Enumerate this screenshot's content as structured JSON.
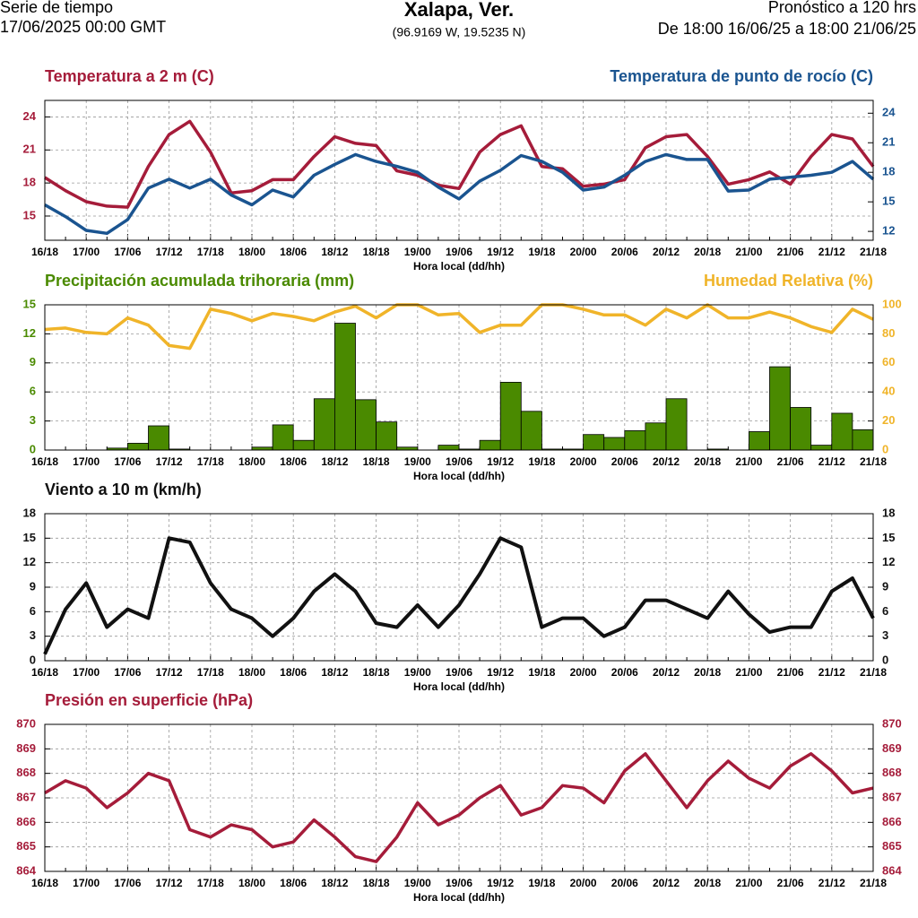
{
  "header": {
    "left1": "Serie de tiempo",
    "left2": "17/06/2025 00:00 GMT",
    "title": "Xalapa, Ver.",
    "subtitle": "(96.9169 W, 19.5235 N)",
    "right1": "Pronóstico a 120 hrs",
    "right2": "De 18:00 16/06/25 a 18:00 21/06/25"
  },
  "chart_data": [
    {
      "type": "line",
      "xlabel": "Hora local (dd/hh)",
      "grid": true,
      "categories": [
        "16/18",
        null,
        "17/00",
        null,
        "17/06",
        null,
        "17/12",
        null,
        "17/18",
        null,
        "18/00",
        null,
        "18/06",
        null,
        "18/12",
        null,
        "18/18",
        null,
        "19/00",
        null,
        "19/06",
        null,
        "19/12",
        null,
        "19/18",
        null,
        "20/00",
        null,
        "20/06",
        null,
        "20/12",
        null,
        "20/18",
        null,
        "21/00",
        null,
        "21/06",
        null,
        "21/12",
        null,
        "21/18"
      ],
      "ylim": [
        12.8,
        25.5
      ],
      "yticks": [
        15,
        18,
        21,
        24
      ],
      "y2lim": [
        11.1,
        25.3
      ],
      "y2ticks": [
        12,
        15,
        18,
        21,
        24
      ],
      "series": [
        {
          "name": "Temperatura a 2 m (C)",
          "color": "#a51c3a",
          "values": [
            18.5,
            17.3,
            16.3,
            15.9,
            15.8,
            19.5,
            22.4,
            23.6,
            20.8,
            17.1,
            17.3,
            18.3,
            18.3,
            20.4,
            22.2,
            21.6,
            21.4,
            19.1,
            18.7,
            17.8,
            17.5,
            20.8,
            22.4,
            23.2,
            19.5,
            19.3,
            17.7,
            17.9,
            18.3,
            21.2,
            22.2,
            22.4,
            20.4,
            17.9,
            18.3,
            19.0,
            17.9,
            20.4,
            22.4,
            22.0,
            19.5
          ]
        },
        {
          "name": "Temperatura de punto de rocío (C)",
          "color": "#1a5490",
          "axis": "y2",
          "values": [
            14.7,
            13.5,
            12.1,
            11.8,
            13.2,
            16.4,
            17.3,
            16.4,
            17.3,
            15.7,
            14.7,
            16.2,
            15.5,
            17.7,
            18.8,
            19.8,
            19.1,
            18.6,
            18.0,
            16.5,
            15.3,
            17.1,
            18.2,
            19.7,
            19.1,
            18.0,
            16.2,
            16.5,
            17.7,
            19.1,
            19.8,
            19.3,
            19.3,
            16.1,
            16.2,
            17.3,
            17.5,
            17.7,
            18.0,
            19.1,
            17.3
          ]
        }
      ]
    },
    {
      "type": "combo",
      "xlabel": "Hora local (dd/hh)",
      "grid": true,
      "categories": [
        "16/18",
        null,
        "17/00",
        null,
        "17/06",
        null,
        "17/12",
        null,
        "17/18",
        null,
        "18/00",
        null,
        "18/06",
        null,
        "18/12",
        null,
        "18/18",
        null,
        "19/00",
        null,
        "19/06",
        null,
        "19/12",
        null,
        "19/18",
        null,
        "20/00",
        null,
        "20/06",
        null,
        "20/12",
        null,
        "20/18",
        null,
        "21/00",
        null,
        "21/06",
        null,
        "21/12",
        null,
        "21/18"
      ],
      "ylim": [
        0,
        15
      ],
      "yticks": [
        0,
        3,
        6,
        9,
        12,
        15
      ],
      "y2lim": [
        0,
        100
      ],
      "y2ticks": [
        0,
        20,
        40,
        60,
        80,
        100
      ],
      "series": [
        {
          "name": "Precipitación acumulada trihoraria (mm)",
          "type": "bar",
          "color": "#4a8a00",
          "values": [
            null,
            0,
            0,
            0,
            0.2,
            0.7,
            2.5,
            0.1,
            0,
            0,
            0,
            0.3,
            2.6,
            1.0,
            5.3,
            13.1,
            5.2,
            2.9,
            0.3,
            0,
            0.5,
            0.1,
            1.0,
            7.0,
            4.0,
            0.1,
            0.1,
            1.6,
            1.3,
            2.0,
            2.8,
            5.3,
            0,
            0.1,
            0,
            1.9,
            8.6,
            4.4,
            0.5,
            3.8,
            2.1
          ]
        },
        {
          "name": "Humedad Relativa (%)",
          "type": "line",
          "color": "#f0b429",
          "axis": "y2",
          "values": [
            83,
            84,
            81,
            80,
            91,
            86,
            72,
            70,
            97,
            94,
            89,
            94,
            92,
            89,
            95,
            99,
            91,
            100,
            100,
            93,
            94,
            81,
            86,
            86,
            100,
            100,
            97,
            93,
            93,
            86,
            97,
            91,
            100,
            91,
            91,
            95,
            91,
            85,
            81,
            97,
            90
          ]
        }
      ]
    },
    {
      "type": "line",
      "xlabel": "Hora local (dd/hh)",
      "grid": true,
      "categories": [
        "16/18",
        null,
        "17/00",
        null,
        "17/06",
        null,
        "17/12",
        null,
        "17/18",
        null,
        "18/00",
        null,
        "18/06",
        null,
        "18/12",
        null,
        "18/18",
        null,
        "19/00",
        null,
        "19/06",
        null,
        "19/12",
        null,
        "19/18",
        null,
        "20/00",
        null,
        "20/06",
        null,
        "20/12",
        null,
        "20/18",
        null,
        "21/00",
        null,
        "21/06",
        null,
        "21/12",
        null,
        "21/18"
      ],
      "ylim": [
        0,
        18
      ],
      "yticks": [
        0,
        3,
        6,
        9,
        12,
        15,
        18
      ],
      "series": [
        {
          "name": "Viento a 10 m (km/h)",
          "color": "#111111",
          "values": [
            0.8,
            6.3,
            9.5,
            4.1,
            6.3,
            5.2,
            15.0,
            14.5,
            9.5,
            6.3,
            5.2,
            3.0,
            5.2,
            8.5,
            10.6,
            8.5,
            4.6,
            4.1,
            6.8,
            4.1,
            6.8,
            10.6,
            15.0,
            13.9,
            4.1,
            5.2,
            5.2,
            3.0,
            4.1,
            7.4,
            7.4,
            6.3,
            5.2,
            8.5,
            5.7,
            3.5,
            4.1,
            4.1,
            8.5,
            10.1,
            5.2
          ]
        }
      ]
    },
    {
      "type": "line",
      "xlabel": "Hora local (dd/hh)",
      "grid": true,
      "categories": [
        "16/18",
        null,
        "17/00",
        null,
        "17/06",
        null,
        "17/12",
        null,
        "17/18",
        null,
        "18/00",
        null,
        "18/06",
        null,
        "18/12",
        null,
        "18/18",
        null,
        "19/00",
        null,
        "19/06",
        null,
        "19/12",
        null,
        "19/18",
        null,
        "20/00",
        null,
        "20/06",
        null,
        "20/12",
        null,
        "20/18",
        null,
        "21/00",
        null,
        "21/06",
        null,
        "21/12",
        null,
        "21/18"
      ],
      "ylim": [
        864,
        870
      ],
      "yticks": [
        864,
        865,
        866,
        867,
        868,
        869,
        870
      ],
      "series": [
        {
          "name": "Presión en superficie (hPa)",
          "color": "#a51c3a",
          "values": [
            867.2,
            867.7,
            867.4,
            866.6,
            867.2,
            868.0,
            867.7,
            865.7,
            865.4,
            865.9,
            865.7,
            865.0,
            865.2,
            866.1,
            865.4,
            864.6,
            864.4,
            865.4,
            866.8,
            865.9,
            866.3,
            867.0,
            867.5,
            866.3,
            866.6,
            867.5,
            867.4,
            866.8,
            868.1,
            868.8,
            867.7,
            866.6,
            867.7,
            868.5,
            867.8,
            867.4,
            868.3,
            868.8,
            868.1,
            867.2,
            867.4
          ]
        }
      ]
    }
  ]
}
